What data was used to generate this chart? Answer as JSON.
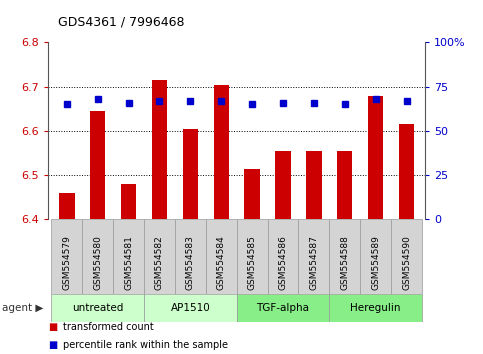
{
  "title": "GDS4361 / 7996468",
  "samples": [
    "GSM554579",
    "GSM554580",
    "GSM554581",
    "GSM554582",
    "GSM554583",
    "GSM554584",
    "GSM554585",
    "GSM554586",
    "GSM554587",
    "GSM554588",
    "GSM554589",
    "GSM554590"
  ],
  "bar_values": [
    6.46,
    6.645,
    6.48,
    6.715,
    6.605,
    6.705,
    6.515,
    6.555,
    6.555,
    6.555,
    6.68,
    6.615
  ],
  "percentile_values": [
    65,
    68,
    66,
    67,
    67,
    67,
    65,
    66,
    66,
    65,
    68,
    67
  ],
  "ymin": 6.4,
  "ymax": 6.8,
  "yticks": [
    6.4,
    6.5,
    6.6,
    6.7,
    6.8
  ],
  "y2min": 0,
  "y2max": 100,
  "y2ticks": [
    0,
    25,
    50,
    75,
    100
  ],
  "bar_color": "#cc0000",
  "percentile_color": "#0000cc",
  "bar_width": 0.5,
  "group_defs": [
    {
      "start": 0,
      "end": 2,
      "label": "untreated",
      "color": "#ccffcc"
    },
    {
      "start": 3,
      "end": 5,
      "label": "AP1510",
      "color": "#ccffcc"
    },
    {
      "start": 6,
      "end": 8,
      "label": "TGF-alpha",
      "color": "#88ee88"
    },
    {
      "start": 9,
      "end": 11,
      "label": "Heregulin",
      "color": "#88ee88"
    }
  ],
  "gray_color": "#d4d4d4",
  "border_color": "#999999",
  "legend_bar": "transformed count",
  "legend_pct": "percentile rank within the sample",
  "tick_label_color": "#cc0000",
  "y2_tick_color": "#0000cc",
  "plot_bg": "#ffffff"
}
